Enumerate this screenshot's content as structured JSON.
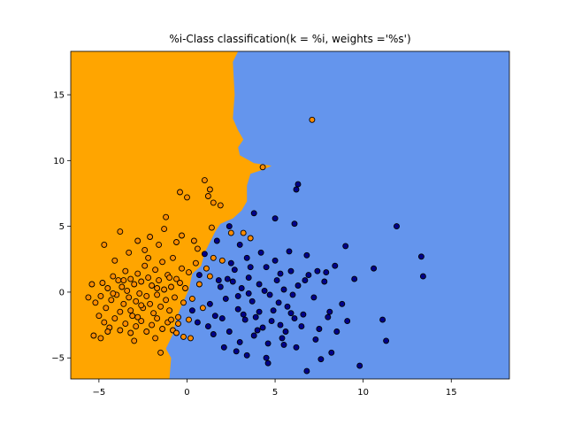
{
  "chart_data": {
    "type": "scatter",
    "title": "%i-Class classification(k = %i, weights ='%s')",
    "xlabel": "",
    "ylabel": "",
    "xlim": [
      -6.6,
      18.3
    ],
    "ylim": [
      -6.6,
      18.3
    ],
    "xticks": [
      -5,
      0,
      5,
      10,
      15
    ],
    "yticks": [
      -5,
      0,
      5,
      10,
      15
    ],
    "grid": false,
    "legend": "none",
    "colors": {
      "class_0_region": "#FFA500",
      "class_1_region": "#6495ED",
      "class_0_point": "#FF8C00",
      "class_1_point": "#00008B",
      "point_edge": "#000000"
    },
    "decision_boundary": [
      [
        2.9,
        18.3
      ],
      [
        2.6,
        17.5
      ],
      [
        2.7,
        15.0
      ],
      [
        2.6,
        13.2
      ],
      [
        2.9,
        12.3
      ],
      [
        3.2,
        11.6
      ],
      [
        2.9,
        11.0
      ],
      [
        3.0,
        10.4
      ],
      [
        3.8,
        9.8
      ],
      [
        4.8,
        9.6
      ],
      [
        4.3,
        9.3
      ],
      [
        3.6,
        9.0
      ],
      [
        3.4,
        8.1
      ],
      [
        3.4,
        6.9
      ],
      [
        3.1,
        6.2
      ],
      [
        2.6,
        5.6
      ],
      [
        1.9,
        5.2
      ],
      [
        1.6,
        4.6
      ],
      [
        1.3,
        3.8
      ],
      [
        1.0,
        3.0
      ],
      [
        0.8,
        2.0
      ],
      [
        0.3,
        1.4
      ],
      [
        0.1,
        0.2
      ],
      [
        -0.3,
        -1.0
      ],
      [
        -0.6,
        -2.0
      ],
      [
        -0.8,
        -3.2
      ],
      [
        -1.2,
        -4.3
      ],
      [
        -0.9,
        -5.0
      ],
      [
        -1.0,
        -6.6
      ]
    ],
    "series": [
      {
        "class": 0,
        "points": [
          [
            -5.6,
            -0.4
          ],
          [
            -5.2,
            -0.8
          ],
          [
            -5.4,
            0.6
          ],
          [
            -4.9,
            -0.3
          ],
          [
            -4.8,
            0.7
          ],
          [
            -4.6,
            -1.2
          ],
          [
            -4.5,
            0.3
          ],
          [
            -4.3,
            -0.6
          ],
          [
            -4.2,
            1.2
          ],
          [
            -4.0,
            -0.2
          ],
          [
            -3.9,
            0.9
          ],
          [
            -3.8,
            -1.5
          ],
          [
            -3.7,
            0.4
          ],
          [
            -3.6,
            -0.9
          ],
          [
            -3.5,
            1.6
          ],
          [
            -3.4,
            0.1
          ],
          [
            -3.3,
            -0.4
          ],
          [
            -3.2,
            1.0
          ],
          [
            -3.1,
            -1.8
          ],
          [
            -3.0,
            0.6
          ],
          [
            -2.9,
            -0.7
          ],
          [
            -2.8,
            1.4
          ],
          [
            -2.7,
            -0.1
          ],
          [
            -2.6,
            0.8
          ],
          [
            -2.5,
            -1.2
          ],
          [
            -2.4,
            2.0
          ],
          [
            -2.3,
            -0.3
          ],
          [
            -2.2,
            1.1
          ],
          [
            -2.1,
            -0.9
          ],
          [
            -2.0,
            0.5
          ],
          [
            -1.9,
            -1.6
          ],
          [
            -1.8,
            1.7
          ],
          [
            -1.7,
            -0.2
          ],
          [
            -1.6,
            0.9
          ],
          [
            -1.5,
            -1.1
          ],
          [
            -1.4,
            2.3
          ],
          [
            -1.3,
            0.2
          ],
          [
            -1.2,
            -0.6
          ],
          [
            -1.1,
            1.3
          ],
          [
            -1.0,
            -1.4
          ],
          [
            -0.9,
            0.4
          ],
          [
            -0.8,
            2.6
          ],
          [
            -0.7,
            -0.4
          ],
          [
            -0.6,
            1.0
          ],
          [
            -0.5,
            -1.9
          ],
          [
            -0.4,
            0.7
          ],
          [
            -0.3,
            1.8
          ],
          [
            -0.2,
            -0.8
          ],
          [
            -0.1,
            0.3
          ],
          [
            0.1,
            1.5
          ],
          [
            0.3,
            -0.5
          ],
          [
            0.5,
            2.2
          ],
          [
            0.7,
            0.6
          ],
          [
            0.9,
            -1.2
          ],
          [
            1.1,
            1.8
          ],
          [
            -5.0,
            -1.8
          ],
          [
            -4.7,
            -2.3
          ],
          [
            -4.4,
            -2.7
          ],
          [
            -4.1,
            -2.0
          ],
          [
            -3.8,
            -2.9
          ],
          [
            -3.5,
            -2.4
          ],
          [
            -3.2,
            -3.1
          ],
          [
            -2.9,
            -2.6
          ],
          [
            -2.6,
            -2.2
          ],
          [
            -2.3,
            -3.0
          ],
          [
            -2.0,
            -2.5
          ],
          [
            -1.7,
            -2.0
          ],
          [
            -1.4,
            -2.8
          ],
          [
            -1.1,
            -2.3
          ],
          [
            -0.8,
            -2.9
          ],
          [
            -0.5,
            -2.4
          ],
          [
            -0.2,
            -3.4
          ],
          [
            0.1,
            -2.1
          ],
          [
            -5.3,
            -3.3
          ],
          [
            -4.9,
            -3.5
          ],
          [
            -4.5,
            -3.0
          ],
          [
            -3.0,
            -3.7
          ],
          [
            -1.8,
            -3.5
          ],
          [
            -1.5,
            -4.6
          ],
          [
            0.2,
            -3.5
          ],
          [
            -4.7,
            3.6
          ],
          [
            -4.1,
            2.4
          ],
          [
            -3.8,
            4.6
          ],
          [
            -3.3,
            3.0
          ],
          [
            -2.8,
            3.9
          ],
          [
            -2.4,
            3.2
          ],
          [
            -2.1,
            4.2
          ],
          [
            -1.6,
            3.6
          ],
          [
            -1.3,
            4.8
          ],
          [
            -1.2,
            5.7
          ],
          [
            -0.6,
            3.8
          ],
          [
            -0.3,
            4.3
          ],
          [
            0.4,
            3.9
          ],
          [
            0.6,
            3.3
          ],
          [
            -0.4,
            7.6
          ],
          [
            0.0,
            7.2
          ],
          [
            1.0,
            8.5
          ],
          [
            1.3,
            7.8
          ],
          [
            1.2,
            7.3
          ],
          [
            1.5,
            6.8
          ],
          [
            1.9,
            6.6
          ],
          [
            1.4,
            4.9
          ],
          [
            1.5,
            2.6
          ],
          [
            1.3,
            1.2
          ],
          [
            2.0,
            2.4
          ],
          [
            2.5,
            4.5
          ],
          [
            3.2,
            4.5
          ],
          [
            3.6,
            4.1
          ],
          [
            4.3,
            9.5
          ],
          [
            7.1,
            13.1
          ],
          [
            -0.6,
            -3.1
          ],
          [
            -2.6,
            -1.0
          ],
          [
            -3.6,
            0.9
          ],
          [
            -2.2,
            2.6
          ],
          [
            -1.0,
            1.1
          ],
          [
            -1.7,
            0.3
          ],
          [
            -3.2,
            -1.4
          ],
          [
            -4.2,
            -0.1
          ],
          [
            -2.8,
            -1.9
          ],
          [
            -0.9,
            -2.1
          ]
        ]
      },
      {
        "class": 1,
        "points": [
          [
            2.2,
            -0.5
          ],
          [
            2.6,
            0.8
          ],
          [
            2.9,
            -1.3
          ],
          [
            3.1,
            0.3
          ],
          [
            3.3,
            -2.1
          ],
          [
            3.5,
            1.1
          ],
          [
            3.7,
            -0.7
          ],
          [
            3.9,
            -1.9
          ],
          [
            4.1,
            0.6
          ],
          [
            4.3,
            -2.7
          ],
          [
            4.5,
            1.9
          ],
          [
            4.7,
            -0.2
          ],
          [
            4.9,
            -1.4
          ],
          [
            5.1,
            0.9
          ],
          [
            5.3,
            -2.5
          ],
          [
            5.5,
            0.2
          ],
          [
            5.7,
            -1.1
          ],
          [
            5.9,
            1.6
          ],
          [
            6.1,
            -2.0
          ],
          [
            6.3,
            0.5
          ],
          [
            6.6,
            -1.7
          ],
          [
            6.9,
            1.3
          ],
          [
            7.2,
            -0.4
          ],
          [
            7.5,
            -2.8
          ],
          [
            7.8,
            0.8
          ],
          [
            8.1,
            -1.5
          ],
          [
            8.4,
            2.0
          ],
          [
            8.8,
            -0.9
          ],
          [
            9.1,
            -2.2
          ],
          [
            9.5,
            1.0
          ],
          [
            1.6,
            -1.8
          ],
          [
            1.9,
            0.4
          ],
          [
            2.4,
            -3.0
          ],
          [
            2.7,
            1.7
          ],
          [
            3.0,
            -3.8
          ],
          [
            3.4,
            2.6
          ],
          [
            3.8,
            -3.3
          ],
          [
            4.2,
            3.0
          ],
          [
            4.6,
            -3.9
          ],
          [
            5.0,
            2.4
          ],
          [
            5.4,
            -3.5
          ],
          [
            5.8,
            3.1
          ],
          [
            6.2,
            -4.2
          ],
          [
            6.8,
            2.8
          ],
          [
            7.3,
            -3.6
          ],
          [
            7.9,
            1.5
          ],
          [
            8.5,
            -3.0
          ],
          [
            9.0,
            3.5
          ],
          [
            9.8,
            -5.6
          ],
          [
            10.6,
            1.8
          ],
          [
            11.1,
            -2.1
          ],
          [
            11.3,
            -3.7
          ],
          [
            11.9,
            5.0
          ],
          [
            13.3,
            2.7
          ],
          [
            13.4,
            1.2
          ],
          [
            6.3,
            8.2
          ],
          [
            6.2,
            7.8
          ],
          [
            5.0,
            5.6
          ],
          [
            6.1,
            5.2
          ],
          [
            3.8,
            6.0
          ],
          [
            2.4,
            5.0
          ],
          [
            1.7,
            3.9
          ],
          [
            1.0,
            2.9
          ],
          [
            0.7,
            1.3
          ],
          [
            0.3,
            -1.4
          ],
          [
            0.6,
            -2.3
          ],
          [
            1.2,
            -2.6
          ],
          [
            1.5,
            -3.2
          ],
          [
            2.1,
            -4.2
          ],
          [
            2.8,
            -4.5
          ],
          [
            3.4,
            -4.8
          ],
          [
            4.5,
            -5.0
          ],
          [
            4.6,
            -5.4
          ],
          [
            5.5,
            -4.0
          ],
          [
            6.8,
            -6.0
          ],
          [
            7.6,
            -5.1
          ],
          [
            8.2,
            -4.6
          ],
          [
            5.6,
            -3.0
          ],
          [
            6.5,
            -2.6
          ],
          [
            4.0,
            -2.9
          ],
          [
            3.2,
            -1.7
          ],
          [
            2.0,
            -2.0
          ],
          [
            1.3,
            -0.9
          ],
          [
            2.5,
            2.2
          ],
          [
            3.0,
            3.6
          ],
          [
            3.6,
            1.9
          ],
          [
            4.4,
            0.1
          ],
          [
            5.2,
            -0.8
          ],
          [
            6.0,
            -0.2
          ],
          [
            6.7,
            0.9
          ],
          [
            7.4,
            1.6
          ],
          [
            8.0,
            -1.9
          ],
          [
            2.3,
            1.0
          ],
          [
            4.8,
            -2.2
          ],
          [
            3.5,
            -0.1
          ],
          [
            5.9,
            -1.6
          ],
          [
            1.8,
            0.9
          ],
          [
            2.9,
            -0.3
          ],
          [
            4.1,
            -1.5
          ],
          [
            5.3,
            1.4
          ]
        ]
      }
    ]
  }
}
